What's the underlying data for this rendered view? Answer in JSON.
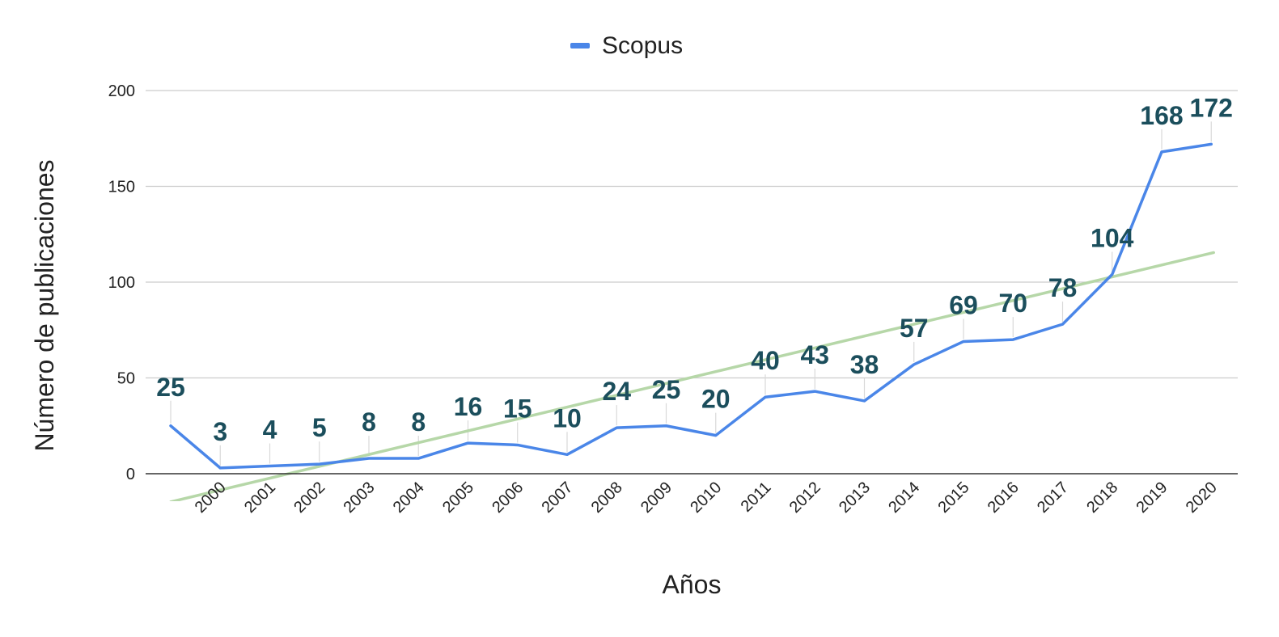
{
  "chart_data": {
    "type": "line",
    "legend_position": "top",
    "grid": true,
    "xlabel": "Años",
    "ylabel": "Número de publicaciones",
    "ylim": [
      0,
      200
    ],
    "y_ticks": [
      "0",
      "50",
      "100",
      "150",
      "200"
    ],
    "categories": [
      "",
      "2000",
      "2001",
      "2002",
      "2003",
      "2004",
      "2005",
      "2006",
      "2007",
      "2008",
      "2009",
      "2010",
      "2011",
      "2012",
      "2013",
      "2014",
      "2015",
      "2016",
      "2017",
      "2018",
      "2019",
      "2020"
    ],
    "series": [
      {
        "name": "Scopus",
        "color": "#4a86e8",
        "values": [
          25,
          3,
          4,
          5,
          8,
          8,
          16,
          15,
          10,
          24,
          25,
          20,
          40,
          43,
          38,
          57,
          69,
          70,
          78,
          104,
          168,
          172
        ]
      }
    ],
    "trendline": {
      "type": "linear",
      "color": "#b6d7a8",
      "start": {
        "x": 0,
        "y": -14.7
      },
      "end": {
        "x": 21,
        "y": 115.2
      }
    },
    "label_color": "#1b4e5c"
  }
}
